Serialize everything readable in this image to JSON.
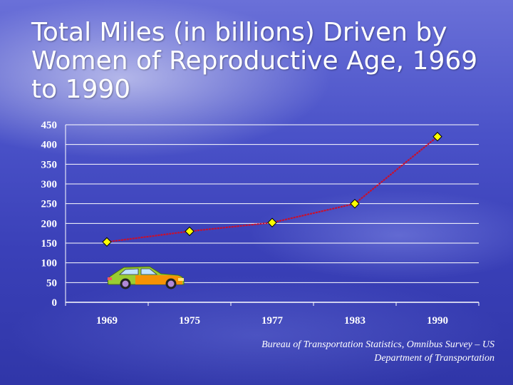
{
  "slide": {
    "title": "Total Miles (in billions) Driven by Women of Reproductive Age, 1969 to 1990",
    "source_line1": "Bureau of Transportation Statistics, Omnibus Survey – US",
    "source_line2": "Department of Transportation"
  },
  "colors": {
    "line": "#c8102e",
    "marker_fill": "#ffff00",
    "marker_stroke": "#000000",
    "gridline": "#ffffff",
    "text": "#ffffff"
  },
  "chart_data": {
    "type": "line",
    "title": "Total Miles (in billions) Driven by Women of Reproductive Age, 1969 to 1990",
    "categories": [
      "1969",
      "1975",
      "1977",
      "1983",
      "1990"
    ],
    "series": [
      {
        "values": [
          153,
          180,
          202,
          250,
          420
        ]
      }
    ],
    "ylim": [
      0,
      450
    ],
    "yticks": [
      0,
      50,
      100,
      150,
      200,
      250,
      300,
      350,
      400,
      450
    ],
    "grid": true,
    "legend": "none",
    "marker": "diamond"
  },
  "decoration": {
    "icon": "car-icon"
  }
}
